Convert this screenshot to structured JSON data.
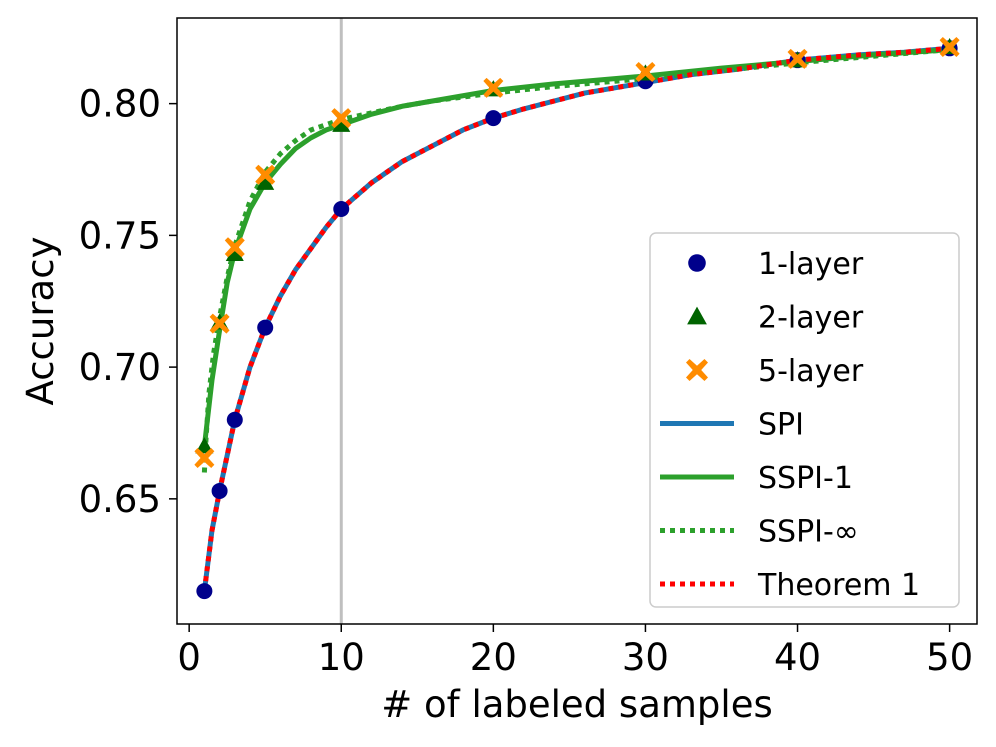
{
  "chart_data": {
    "type": "line",
    "title": "",
    "xlabel": "# of labeled samples",
    "ylabel": "Accuracy",
    "xlim": [
      -0.8,
      51.8
    ],
    "ylim": [
      0.6025,
      0.8325
    ],
    "xticks": [
      0,
      10,
      20,
      30,
      40,
      50
    ],
    "xtick_labels": [
      "0",
      "10",
      "20",
      "30",
      "40",
      "50"
    ],
    "yticks": [
      0.65,
      0.7,
      0.75,
      0.8
    ],
    "ytick_labels": [
      "0.65",
      "0.70",
      "0.75",
      "0.80"
    ],
    "grid": false,
    "vertical_reference_line": {
      "x": 10,
      "color": "#bfbfbf"
    },
    "legend_position": "lower-right",
    "line_series": [
      {
        "name": "SPI",
        "color": "#1f77b4",
        "style": "solid",
        "x": [
          1,
          1.5,
          2,
          3,
          4,
          5,
          6,
          7,
          8,
          9,
          10,
          12,
          14,
          16,
          18,
          20,
          22,
          24,
          26,
          28,
          30,
          33,
          36,
          40,
          44,
          47,
          50
        ],
        "y": [
          0.615,
          0.638,
          0.653,
          0.68,
          0.7,
          0.715,
          0.727,
          0.737,
          0.745,
          0.753,
          0.76,
          0.77,
          0.778,
          0.784,
          0.79,
          0.7945,
          0.798,
          0.801,
          0.804,
          0.806,
          0.808,
          0.811,
          0.813,
          0.8165,
          0.8185,
          0.8195,
          0.821
        ]
      },
      {
        "name": "SSPI-1",
        "color": "#2ca02c",
        "style": "solid",
        "x": [
          1,
          1.5,
          2,
          2.5,
          3,
          4,
          5,
          6,
          7,
          8,
          9,
          10,
          12,
          14,
          16,
          18,
          20,
          24,
          28,
          30,
          35,
          40,
          45,
          50
        ],
        "y": [
          0.67,
          0.695,
          0.714,
          0.732,
          0.744,
          0.76,
          0.77,
          0.777,
          0.783,
          0.787,
          0.79,
          0.792,
          0.796,
          0.799,
          0.801,
          0.803,
          0.805,
          0.8075,
          0.8095,
          0.8105,
          0.8135,
          0.816,
          0.8185,
          0.8205
        ]
      },
      {
        "name": "SSPI-∞",
        "color": "#2ca02c",
        "style": "dotted",
        "x": [
          1,
          1.1,
          1.3,
          1.6,
          2,
          2.5,
          3,
          4,
          5,
          6,
          7,
          8,
          9,
          10,
          12,
          14,
          16,
          18,
          20,
          24,
          28,
          30,
          35,
          40,
          45,
          50
        ],
        "y": [
          0.66,
          0.672,
          0.69,
          0.705,
          0.719,
          0.734,
          0.746,
          0.763,
          0.774,
          0.781,
          0.786,
          0.79,
          0.792,
          0.794,
          0.7965,
          0.799,
          0.801,
          0.8025,
          0.804,
          0.8065,
          0.8085,
          0.8095,
          0.8125,
          0.8155,
          0.818,
          0.8205
        ]
      },
      {
        "name": "Theorem 1",
        "color": "#ff0000",
        "style": "dotted",
        "x": [
          1,
          1.5,
          2,
          3,
          4,
          5,
          6,
          7,
          8,
          9,
          10,
          12,
          14,
          16,
          18,
          20,
          22,
          24,
          26,
          28,
          30,
          33,
          36,
          40,
          44,
          47,
          50
        ],
        "y": [
          0.615,
          0.638,
          0.653,
          0.68,
          0.7,
          0.715,
          0.727,
          0.737,
          0.745,
          0.753,
          0.76,
          0.77,
          0.778,
          0.784,
          0.79,
          0.7945,
          0.798,
          0.801,
          0.804,
          0.806,
          0.808,
          0.811,
          0.813,
          0.8165,
          0.8185,
          0.8195,
          0.821
        ]
      }
    ],
    "marker_series": [
      {
        "name": "1-layer",
        "color": "#00008b",
        "marker": "circle",
        "x": [
          1,
          2,
          3,
          5,
          10,
          20,
          30,
          40,
          50
        ],
        "y": [
          0.615,
          0.653,
          0.68,
          0.715,
          0.76,
          0.7945,
          0.8085,
          0.8165,
          0.821
        ]
      },
      {
        "name": "2-layer",
        "color": "#006400",
        "marker": "triangle",
        "x": [
          1,
          2,
          3,
          5,
          10,
          20,
          30,
          40,
          50
        ],
        "y": [
          0.67,
          0.717,
          0.743,
          0.77,
          0.792,
          0.8055,
          0.8115,
          0.8165,
          0.8215
        ]
      },
      {
        "name": "5-layer",
        "color": "#ff8c00",
        "marker": "x",
        "x": [
          1,
          2,
          3,
          5,
          10,
          20,
          30,
          40,
          50
        ],
        "y": [
          0.6655,
          0.7165,
          0.7455,
          0.773,
          0.7945,
          0.806,
          0.812,
          0.817,
          0.8215
        ]
      }
    ],
    "legend_order": [
      "1-layer",
      "2-layer",
      "5-layer",
      "SPI",
      "SSPI-1",
      "SSPI-∞",
      "Theorem 1"
    ]
  }
}
